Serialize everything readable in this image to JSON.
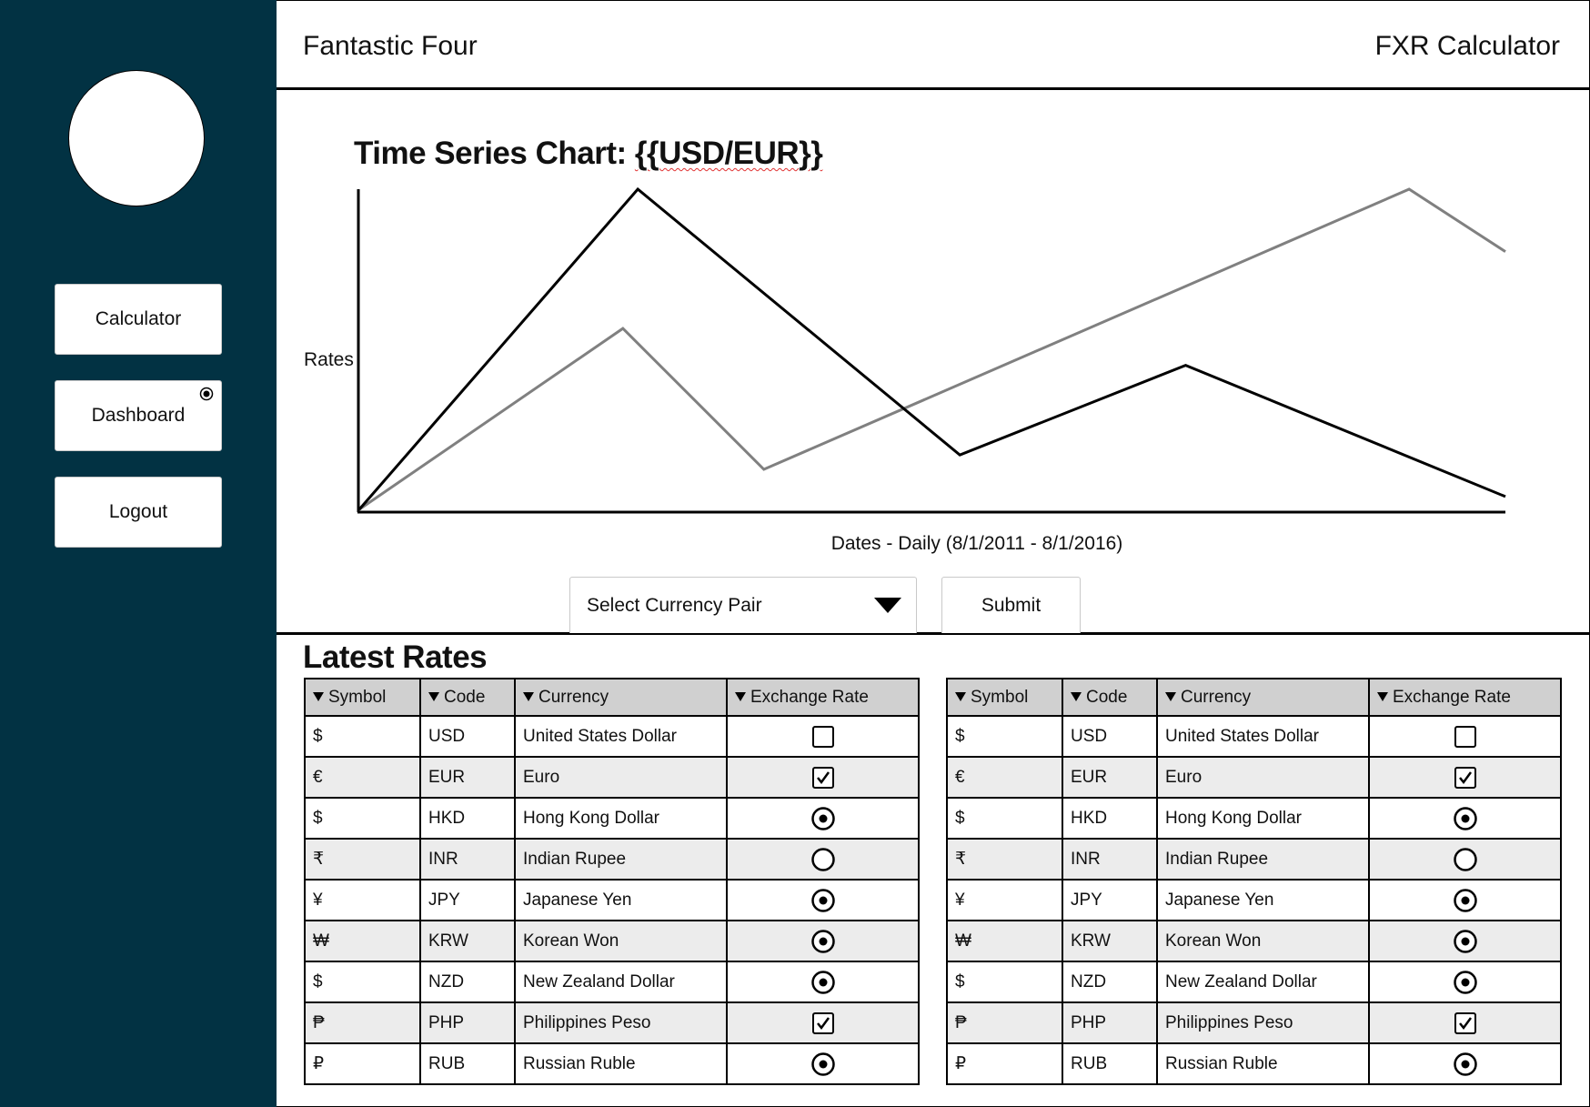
{
  "header": {
    "brand": "Fantastic Four",
    "app_title": "FXR Calculator"
  },
  "sidebar": {
    "avatar": "user avatar",
    "nav": [
      {
        "label": "Calculator",
        "active": false
      },
      {
        "label": "Dashboard",
        "active": true
      },
      {
        "label": "Logout",
        "active": false
      }
    ]
  },
  "chart": {
    "title_prefix": "Time Series Chart: ",
    "title_pair": "{{USD/EUR}}",
    "ylabel": "Rates",
    "xlabel": "Dates - Daily (8/1/2011 - 8/1/2016)",
    "select_placeholder": "Select Currency Pair",
    "submit_label": "Submit"
  },
  "chart_data": {
    "type": "line",
    "title": "Time Series Chart: {{USD/EUR}}",
    "xlabel": "Dates - Daily (8/1/2011 - 8/1/2016)",
    "ylabel": "Rates",
    "xlim": [
      0,
      100
    ],
    "ylim": [
      0,
      100
    ],
    "grid": false,
    "series": [
      {
        "color": "#000000",
        "x": [
          0,
          24.3,
          52.4,
          72.1,
          100
        ],
        "y": [
          0,
          100,
          17,
          45,
          4
        ]
      },
      {
        "color": "#808080",
        "x": [
          0,
          23.0,
          35.3,
          91.6,
          100
        ],
        "y": [
          0,
          56.5,
          12.5,
          100,
          80.5
        ]
      }
    ]
  },
  "rates_section": {
    "title": "Latest Rates"
  },
  "table": {
    "headers": [
      "Symbol",
      "Code",
      "Currency",
      "Exchange Rate"
    ],
    "rows": [
      {
        "symbol": "$",
        "code": "USD",
        "currency": "United States Dollar",
        "control": "checkbox-empty"
      },
      {
        "symbol": "€",
        "code": "EUR",
        "currency": "Euro",
        "control": "checkbox-checked"
      },
      {
        "symbol": "$",
        "code": "HKD",
        "currency": "Hong Kong Dollar",
        "control": "radio-selected"
      },
      {
        "symbol": "₹",
        "code": "INR",
        "currency": "Indian Rupee",
        "control": "radio-empty"
      },
      {
        "symbol": "¥",
        "code": "JPY",
        "currency": "Japanese Yen",
        "control": "radio-selected"
      },
      {
        "symbol": "₩",
        "code": "KRW",
        "currency": "Korean Won",
        "control": "radio-selected"
      },
      {
        "symbol": "$",
        "code": "NZD",
        "currency": "New Zealand Dollar",
        "control": "radio-selected"
      },
      {
        "symbol": "₱",
        "code": "PHP",
        "currency": "Philippines Peso",
        "control": "checkbox-checked"
      },
      {
        "symbol": "₽",
        "code": "RUB",
        "currency": "Russian Ruble",
        "control": "radio-selected"
      }
    ]
  },
  "colors": {
    "sidebar": "#023243",
    "table_header": "#d0d0d0",
    "row_alt": "#ececec",
    "series_dark": "#000000",
    "series_light": "#808080"
  },
  "icons": {
    "sort": "triangle-down-icon",
    "select_arrow": "chevron-down-icon",
    "active_indicator": "radio-dot-icon"
  }
}
